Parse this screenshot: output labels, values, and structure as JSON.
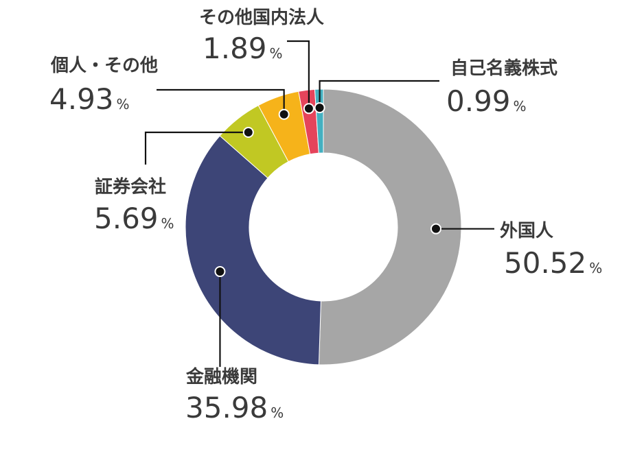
{
  "chart_data": {
    "type": "pie",
    "donut": true,
    "unit": "%",
    "categories": [
      "外国人",
      "金融機関",
      "証券会社",
      "個人・その他",
      "その他国内法人",
      "自己名義株式"
    ],
    "values": [
      50.52,
      35.98,
      5.69,
      4.93,
      1.89,
      0.99
    ],
    "value_labels": [
      "50.52",
      "35.98",
      "5.69",
      "4.93",
      "1.89",
      "0.99"
    ],
    "colors": [
      "#a6a6a6",
      "#3d4577",
      "#c1c823",
      "#f6b31a",
      "#e5445b",
      "#44b0c0"
    ],
    "legend": "callout labels"
  }
}
